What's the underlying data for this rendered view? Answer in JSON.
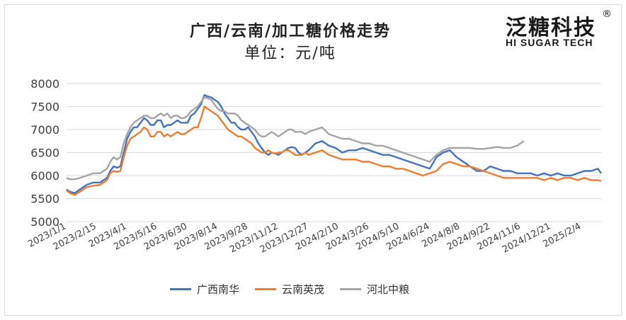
{
  "title": "广西/云南/加工糖价格走势",
  "subtitle": "单位：元/吨",
  "logo": {
    "cn": "泛糖科技",
    "en": "HI SUGAR TECH",
    "reg": "®"
  },
  "chart_data": {
    "type": "line",
    "title": "广西/云南/加工糖价格走势",
    "subtitle": "单位：元/吨",
    "ylim": [
      5000,
      8000
    ],
    "yticks": [
      5000,
      5500,
      6000,
      6500,
      7000,
      7500,
      8000
    ],
    "x_ticks": [
      "2023/1/1",
      "2023/2/15",
      "2023/4/1",
      "2023/5/16",
      "2023/6/30",
      "2023/8/14",
      "2023/9/28",
      "2023/11/12",
      "2023/12/27",
      "2024/2/10",
      "2024/3/26",
      "2024/5/10",
      "2024/6/24",
      "2024/8/8",
      "2024/9/22",
      "2024/11/6",
      "2024/12/21",
      "2025/2/4"
    ],
    "x_unit": "days since 2023/1/1",
    "xlim": [
      0,
      795
    ],
    "gridlines": "horizontal",
    "legend_position": "bottom",
    "series": [
      {
        "name": "广西南华",
        "color": "#4472C4",
        "x": [
          0,
          5,
          12,
          20,
          30,
          40,
          50,
          55,
          60,
          65,
          70,
          75,
          80,
          85,
          90,
          95,
          100,
          105,
          110,
          115,
          120,
          125,
          130,
          135,
          140,
          145,
          150,
          155,
          160,
          165,
          170,
          175,
          180,
          185,
          190,
          195,
          200,
          205,
          210,
          215,
          220,
          225,
          230,
          235,
          240,
          245,
          250,
          255,
          260,
          265,
          270,
          275,
          280,
          285,
          290,
          295,
          300,
          305,
          310,
          315,
          320,
          325,
          330,
          335,
          340,
          345,
          350,
          355,
          360,
          370,
          380,
          390,
          400,
          410,
          420,
          430,
          440,
          450,
          460,
          470,
          480,
          490,
          500,
          510,
          520,
          530,
          540,
          550,
          560,
          570,
          580,
          590,
          600,
          610,
          620,
          630,
          640,
          650,
          660,
          670,
          680,
          690,
          700,
          710,
          720,
          730,
          740,
          750,
          760,
          770,
          780,
          790,
          795
        ],
        "y": [
          5700,
          5650,
          5620,
          5700,
          5800,
          5850,
          5850,
          5900,
          5950,
          6100,
          6200,
          6170,
          6200,
          6500,
          6800,
          6950,
          7050,
          7050,
          7150,
          7250,
          7200,
          7100,
          7100,
          7200,
          7200,
          7050,
          7100,
          7100,
          7150,
          7200,
          7150,
          7150,
          7150,
          7300,
          7350,
          7450,
          7550,
          7750,
          7720,
          7700,
          7650,
          7600,
          7500,
          7350,
          7250,
          7150,
          7150,
          7050,
          7000,
          7000,
          7050,
          6950,
          6850,
          6700,
          6600,
          6500,
          6450,
          6500,
          6480,
          6450,
          6500,
          6550,
          6600,
          6620,
          6600,
          6500,
          6450,
          6500,
          6550,
          6700,
          6750,
          6650,
          6600,
          6500,
          6550,
          6550,
          6600,
          6550,
          6500,
          6450,
          6450,
          6400,
          6350,
          6300,
          6250,
          6200,
          6150,
          6400,
          6500,
          6550,
          6400,
          6300,
          6200,
          6100,
          6100,
          6200,
          6150,
          6100,
          6100,
          6050,
          6050,
          6050,
          6000,
          6050,
          6000,
          6050,
          6000,
          6000,
          6050,
          6100,
          6100,
          6150,
          6050
        ]
      },
      {
        "name": "云南英茂",
        "color": "#ED7D31",
        "x": [
          0,
          5,
          12,
          20,
          30,
          40,
          50,
          55,
          60,
          65,
          70,
          75,
          80,
          85,
          90,
          95,
          100,
          105,
          110,
          115,
          120,
          125,
          130,
          135,
          140,
          145,
          150,
          155,
          160,
          165,
          170,
          175,
          180,
          185,
          190,
          195,
          200,
          205,
          210,
          215,
          220,
          225,
          230,
          235,
          240,
          245,
          250,
          255,
          260,
          265,
          270,
          275,
          280,
          285,
          290,
          295,
          300,
          305,
          310,
          315,
          320,
          325,
          330,
          335,
          340,
          345,
          350,
          355,
          360,
          370,
          380,
          390,
          400,
          410,
          420,
          430,
          440,
          450,
          460,
          470,
          480,
          490,
          500,
          510,
          520,
          530,
          540,
          550,
          560,
          570,
          580,
          590,
          600,
          610,
          620,
          630,
          640,
          650,
          660,
          670,
          680,
          690,
          700,
          710,
          720,
          730,
          740,
          750,
          760,
          770,
          780,
          790,
          795
        ],
        "y": [
          5680,
          5620,
          5580,
          5650,
          5750,
          5780,
          5800,
          5850,
          5900,
          6050,
          6100,
          6080,
          6100,
          6400,
          6650,
          6800,
          6850,
          6900,
          6950,
          7050,
          7000,
          6850,
          6850,
          6950,
          6950,
          6850,
          6900,
          6850,
          6900,
          6950,
          6900,
          6900,
          6950,
          7000,
          7050,
          7050,
          7250,
          7500,
          7450,
          7400,
          7350,
          7300,
          7200,
          7100,
          7000,
          6950,
          6900,
          6850,
          6850,
          6800,
          6750,
          6700,
          6600,
          6550,
          6500,
          6500,
          6550,
          6500,
          6480,
          6500,
          6500,
          6550,
          6550,
          6500,
          6450,
          6450,
          6450,
          6500,
          6450,
          6500,
          6550,
          6450,
          6400,
          6350,
          6350,
          6350,
          6300,
          6300,
          6250,
          6200,
          6200,
          6150,
          6150,
          6100,
          6050,
          6000,
          6050,
          6100,
          6250,
          6300,
          6250,
          6200,
          6200,
          6150,
          6100,
          6050,
          6000,
          5950,
          5950,
          5950,
          5950,
          5950,
          5950,
          5900,
          5950,
          5900,
          5950,
          5950,
          5900,
          5950,
          5900,
          5900,
          5880
        ]
      },
      {
        "name": "河北中粮",
        "color": "#A5A5A5",
        "x": [
          0,
          5,
          12,
          20,
          30,
          40,
          50,
          55,
          60,
          65,
          70,
          75,
          80,
          85,
          90,
          95,
          100,
          105,
          110,
          115,
          120,
          125,
          130,
          135,
          140,
          145,
          150,
          155,
          160,
          165,
          170,
          175,
          180,
          185,
          190,
          195,
          200,
          205,
          210,
          215,
          220,
          225,
          230,
          235,
          240,
          245,
          250,
          255,
          260,
          265,
          270,
          275,
          280,
          285,
          290,
          295,
          300,
          305,
          310,
          315,
          320,
          325,
          330,
          335,
          340,
          345,
          350,
          355,
          360,
          370,
          380,
          390,
          400,
          410,
          420,
          430,
          440,
          450,
          460,
          470,
          480,
          490,
          500,
          510,
          520,
          530,
          540,
          550,
          560,
          570,
          580,
          590,
          600,
          610,
          620,
          630,
          640,
          650,
          660,
          670,
          680
        ],
        "y": [
          5950,
          5920,
          5920,
          5950,
          6000,
          6050,
          6050,
          6100,
          6150,
          6300,
          6400,
          6350,
          6400,
          6700,
          6900,
          7050,
          7150,
          7200,
          7250,
          7300,
          7300,
          7250,
          7250,
          7300,
          7350,
          7300,
          7350,
          7250,
          7300,
          7300,
          7250,
          7250,
          7300,
          7400,
          7450,
          7500,
          7600,
          7700,
          7680,
          7650,
          7550,
          7450,
          7400,
          7400,
          7350,
          7350,
          7350,
          7300,
          7200,
          7150,
          7100,
          7050,
          7000,
          6900,
          6850,
          6850,
          6900,
          6950,
          6900,
          6850,
          6900,
          6950,
          7000,
          7000,
          6950,
          6950,
          6950,
          6900,
          6950,
          7000,
          7050,
          6900,
          6850,
          6800,
          6800,
          6750,
          6700,
          6700,
          6650,
          6650,
          6600,
          6550,
          6500,
          6450,
          6400,
          6350,
          6300,
          6450,
          6550,
          6600,
          6600,
          6600,
          6600,
          6580,
          6580,
          6600,
          6620,
          6600,
          6600,
          6650,
          6750
        ]
      }
    ]
  }
}
